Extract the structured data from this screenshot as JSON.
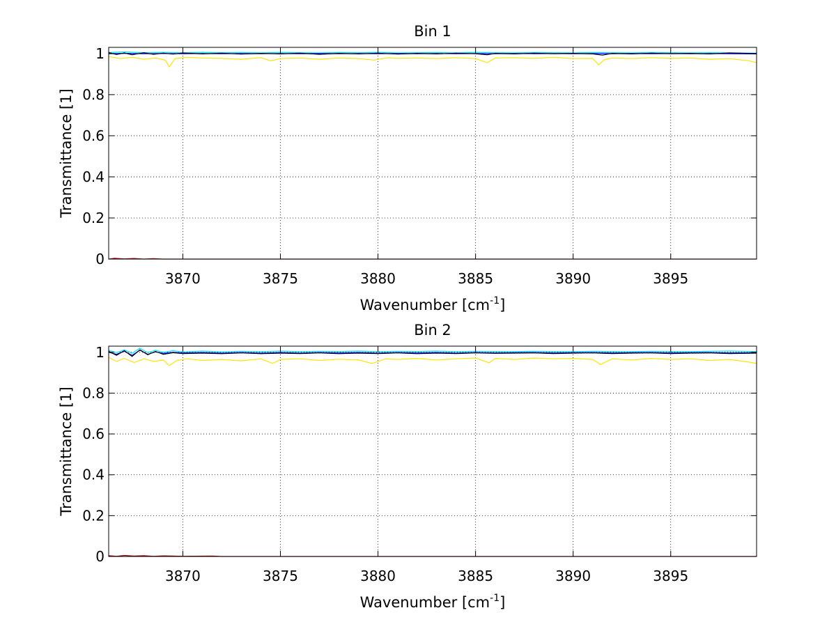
{
  "chart_data": [
    {
      "type": "line",
      "title": "Bin 1",
      "xlabel": "Wavenumber [cm",
      "xlabel_sup": "-1",
      "xlabel_end": "]",
      "ylabel": "Transmittance [1]",
      "xlim": [
        3866.2,
        3899.4
      ],
      "ylim": [
        0,
        1.03
      ],
      "xticks": [
        3870,
        3875,
        3880,
        3885,
        3890,
        3895
      ],
      "yticks": [
        0,
        0.2,
        0.4,
        0.6,
        0.8,
        1
      ],
      "ytick_labels": [
        "0",
        "0.2",
        "0.4",
        "0.6",
        "0.8",
        "1"
      ],
      "grid": true,
      "series": [
        {
          "color": "#00e5ff",
          "x": [
            3866.2,
            3867,
            3868,
            3869,
            3870,
            3871,
            3872,
            3873,
            3874,
            3875,
            3876,
            3877,
            3878,
            3879,
            3880,
            3881,
            3882,
            3883,
            3884,
            3885,
            3886,
            3887,
            3888,
            3889,
            3890,
            3891,
            3892,
            3893,
            3894,
            3895,
            3896,
            3897,
            3898,
            3899.4
          ],
          "values": [
            1.005,
            1.008,
            1.004,
            1.006,
            1.003,
            1.006,
            1.004,
            1.005,
            1.003,
            1.006,
            1.004,
            1.003,
            1.005,
            1.004,
            1.006,
            1.003,
            1.004,
            1.005,
            1.003,
            1.006,
            1.004,
            1.003,
            1.005,
            1.004,
            1.003,
            1.005,
            1.004,
            1.003,
            1.005,
            1.004,
            1.003,
            1.004,
            1.003,
            1.002
          ]
        },
        {
          "color": "#0000ff",
          "x": [
            3866.2,
            3867,
            3868,
            3869,
            3870,
            3871,
            3872,
            3873,
            3874,
            3875,
            3876,
            3877,
            3878,
            3879,
            3880,
            3881,
            3882,
            3883,
            3884,
            3885,
            3886,
            3887,
            3888,
            3889,
            3890,
            3891,
            3892,
            3893,
            3894,
            3895,
            3896,
            3897,
            3898,
            3899.4
          ],
          "values": [
            0.999,
            1.001,
            0.999,
            1.0,
            0.999,
            1.0,
            0.999,
            1.0,
            0.999,
            1.0,
            0.999,
            1.0,
            0.999,
            1.0,
            0.999,
            1.0,
            0.999,
            1.0,
            0.999,
            1.0,
            0.999,
            1.0,
            0.999,
            1.0,
            0.999,
            1.0,
            0.999,
            1.0,
            0.999,
            1.0,
            0.999,
            1.0,
            0.999,
            0.998
          ]
        },
        {
          "color": "#000000",
          "x": [
            3866.2,
            3866.6,
            3867,
            3867.4,
            3868,
            3868.5,
            3869,
            3869.5,
            3870,
            3871,
            3872,
            3873,
            3874,
            3875,
            3876,
            3877,
            3878,
            3879,
            3880,
            3881,
            3882,
            3883,
            3884,
            3885,
            3885.6,
            3886,
            3887,
            3888,
            3889,
            3890,
            3891,
            3891.5,
            3892,
            3893,
            3894,
            3895,
            3896,
            3897,
            3898,
            3899.4
          ],
          "values": [
            1.005,
            0.995,
            1.003,
            0.994,
            1.004,
            0.996,
            1.002,
            0.997,
            1.003,
            0.998,
            1.002,
            0.997,
            1.001,
            0.998,
            1.002,
            0.996,
            1.001,
            0.998,
            1.002,
            0.997,
            1.001,
            0.998,
            1.002,
            0.999,
            0.994,
            1.001,
            0.998,
            1.002,
            0.999,
            1.001,
            0.998,
            0.992,
            1.001,
            0.998,
            1.002,
            0.999,
            1.001,
            0.998,
            1.003,
            1.0
          ]
        },
        {
          "color": "#ffe400",
          "x": [
            3866.2,
            3866.8,
            3867.4,
            3868,
            3868.6,
            3869.1,
            3869.3,
            3869.6,
            3870.2,
            3871,
            3872,
            3873,
            3874,
            3874.5,
            3875,
            3876,
            3877,
            3878,
            3879,
            3879.8,
            3880.5,
            3881,
            3882,
            3883,
            3884,
            3885,
            3885.6,
            3886,
            3887,
            3888,
            3889,
            3890,
            3891,
            3891.3,
            3891.6,
            3892,
            3893,
            3894,
            3895,
            3896,
            3897,
            3898,
            3899,
            3899.4
          ],
          "values": [
            0.985,
            0.975,
            0.982,
            0.972,
            0.978,
            0.968,
            0.935,
            0.975,
            0.982,
            0.978,
            0.976,
            0.972,
            0.98,
            0.965,
            0.975,
            0.978,
            0.972,
            0.978,
            0.975,
            0.968,
            0.98,
            0.976,
            0.978,
            0.975,
            0.98,
            0.975,
            0.955,
            0.978,
            0.98,
            0.976,
            0.982,
            0.975,
            0.976,
            0.945,
            0.97,
            0.978,
            0.975,
            0.98,
            0.976,
            0.978,
            0.972,
            0.975,
            0.965,
            0.955
          ]
        },
        {
          "color": "#a00000",
          "x": [
            3866.2,
            3866.5,
            3867,
            3867.5,
            3868,
            3868.5,
            3869,
            3870,
            3875,
            3880,
            3885,
            3890,
            3895,
            3899.4
          ],
          "values": [
            0.0,
            0.004,
            0.001,
            0.003,
            0.0,
            0.002,
            0.0,
            0.0,
            0.0,
            0.0,
            0.0,
            0.0,
            0.0,
            0.0
          ]
        }
      ]
    },
    {
      "type": "line",
      "title": "Bin 2",
      "xlabel": "Wavenumber [cm",
      "xlabel_sup": "-1",
      "xlabel_end": "]",
      "ylabel": "Transmittance [1]",
      "xlim": [
        3866.2,
        3899.4
      ],
      "ylim": [
        0,
        1.03
      ],
      "xticks": [
        3870,
        3875,
        3880,
        3885,
        3890,
        3895
      ],
      "yticks": [
        0,
        0.2,
        0.4,
        0.6,
        0.8,
        1
      ],
      "ytick_labels": [
        "0",
        "0.2",
        "0.4",
        "0.6",
        "0.8",
        "1"
      ],
      "grid": true,
      "series": [
        {
          "color": "#00e5ff",
          "x": [
            3866.2,
            3866.6,
            3867,
            3867.4,
            3867.8,
            3868.2,
            3868.6,
            3869,
            3869.5,
            3870,
            3871,
            3872,
            3873,
            3874,
            3875,
            3876,
            3877,
            3878,
            3879,
            3880,
            3881,
            3882,
            3883,
            3884,
            3885,
            3886,
            3887,
            3888,
            3889,
            3890,
            3891,
            3892,
            3893,
            3894,
            3895,
            3896,
            3897,
            3898,
            3899.4
          ],
          "values": [
            1.01,
            0.998,
            1.012,
            0.995,
            1.02,
            0.998,
            1.01,
            1.0,
            1.008,
            1.002,
            1.006,
            1.002,
            1.005,
            1.003,
            1.006,
            1.003,
            1.005,
            1.004,
            1.006,
            1.003,
            1.005,
            1.004,
            1.006,
            1.003,
            1.005,
            1.004,
            1.003,
            1.005,
            1.004,
            1.003,
            1.005,
            1.004,
            1.003,
            1.005,
            1.004,
            1.003,
            1.005,
            1.006,
            1.003
          ]
        },
        {
          "color": "#0000ff",
          "x": [
            3866.2,
            3866.6,
            3867,
            3867.4,
            3867.8,
            3868.2,
            3868.6,
            3869,
            3869.5,
            3870,
            3871,
            3872,
            3873,
            3874,
            3875,
            3876,
            3877,
            3878,
            3879,
            3880,
            3881,
            3882,
            3883,
            3884,
            3885,
            3886,
            3887,
            3888,
            3889,
            3890,
            3891,
            3892,
            3893,
            3894,
            3895,
            3896,
            3897,
            3898,
            3899.4
          ],
          "values": [
            1.0,
            0.99,
            1.005,
            0.985,
            1.01,
            0.99,
            1.002,
            0.995,
            1.0,
            0.997,
            0.999,
            0.996,
            0.999,
            0.996,
            0.999,
            0.996,
            0.999,
            0.997,
            0.999,
            0.996,
            0.999,
            0.997,
            0.999,
            0.996,
            0.999,
            0.997,
            0.998,
            0.999,
            0.997,
            0.998,
            0.999,
            0.997,
            0.998,
            0.999,
            0.997,
            0.998,
            0.999,
            0.997,
            0.998
          ]
        },
        {
          "color": "#000000",
          "x": [
            3866.2,
            3866.6,
            3867,
            3867.4,
            3867.8,
            3868.2,
            3868.6,
            3869,
            3869.5,
            3870,
            3871,
            3872,
            3873,
            3874,
            3875,
            3876,
            3877,
            3878,
            3879,
            3880,
            3881,
            3882,
            3883,
            3884,
            3885,
            3886,
            3887,
            3888,
            3889,
            3890,
            3891,
            3892,
            3893,
            3894,
            3895,
            3896,
            3897,
            3898,
            3899.4
          ],
          "values": [
            1.005,
            0.985,
            1.008,
            0.98,
            1.012,
            0.988,
            1.004,
            0.99,
            0.998,
            0.994,
            0.996,
            0.993,
            0.997,
            0.993,
            0.996,
            0.994,
            0.997,
            0.993,
            0.996,
            0.994,
            0.997,
            0.993,
            0.996,
            0.994,
            0.997,
            0.995,
            0.996,
            0.997,
            0.994,
            0.996,
            0.997,
            0.994,
            0.996,
            0.997,
            0.994,
            0.996,
            0.997,
            0.994,
            0.996
          ]
        },
        {
          "color": "#ffe400",
          "x": [
            3866.2,
            3866.6,
            3867,
            3867.5,
            3868,
            3868.5,
            3869,
            3869.3,
            3869.7,
            3870.2,
            3871,
            3872,
            3873,
            3874,
            3874.6,
            3875,
            3876,
            3877,
            3878,
            3879,
            3879.7,
            3880.4,
            3881,
            3882,
            3883,
            3884,
            3885,
            3885.7,
            3886,
            3887,
            3888,
            3889,
            3890,
            3891,
            3891.4,
            3892,
            3893,
            3894,
            3895,
            3896,
            3897,
            3898,
            3899,
            3899.4
          ],
          "values": [
            0.975,
            0.955,
            0.97,
            0.95,
            0.968,
            0.955,
            0.962,
            0.935,
            0.96,
            0.968,
            0.96,
            0.965,
            0.958,
            0.968,
            0.945,
            0.965,
            0.968,
            0.96,
            0.966,
            0.962,
            0.945,
            0.968,
            0.965,
            0.97,
            0.962,
            0.968,
            0.972,
            0.948,
            0.97,
            0.965,
            0.972,
            0.968,
            0.97,
            0.965,
            0.94,
            0.968,
            0.962,
            0.97,
            0.965,
            0.968,
            0.96,
            0.965,
            0.952,
            0.945
          ]
        },
        {
          "color": "#a00000",
          "x": [
            3866.2,
            3866.6,
            3867,
            3867.5,
            3868,
            3868.5,
            3869,
            3869.5,
            3870,
            3871.5,
            3872,
            3875,
            3880,
            3885,
            3890,
            3895,
            3899.4
          ],
          "values": [
            0.004,
            0.001,
            0.005,
            0.002,
            0.004,
            0.001,
            0.003,
            0.002,
            0.001,
            0.002,
            0.0,
            0.0,
            0.0,
            0.0,
            0.0,
            0.0,
            0.0
          ]
        }
      ]
    }
  ]
}
